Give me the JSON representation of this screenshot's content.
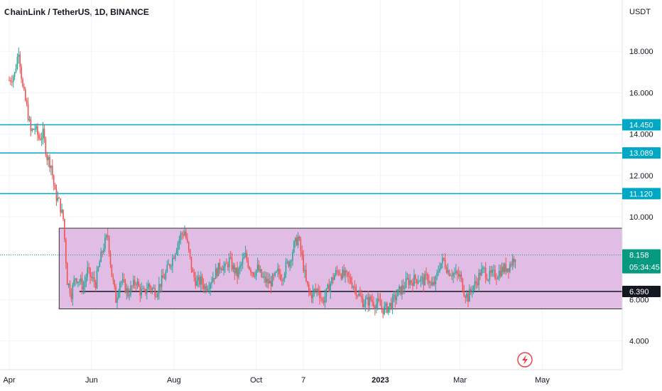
{
  "title": "ChainLink / TetherUS, 1D, BINANCE",
  "colors": {
    "up": "#26a69a",
    "down": "#ef5350",
    "level_line": "#00a8c6",
    "range_fill": "#e1bde6",
    "range_border": "#333333",
    "support": "#131722",
    "last_price": "#089981"
  },
  "icons": {
    "lightning": "lightning-icon"
  },
  "chart_data": {
    "type": "candlestick",
    "currency_label": "USDT",
    "y_ticks": [
      "18.000",
      "16.000",
      "14.000",
      "12.000",
      "10.000",
      "6.000",
      "4.000"
    ],
    "y_tick_values": [
      18,
      16,
      14,
      12,
      10,
      6,
      4
    ],
    "x_ticks": [
      "Apr",
      "Jun",
      "Aug",
      "Oct",
      "7",
      "2023",
      "Mar",
      "May"
    ],
    "x_tick_days": [
      0,
      61,
      122,
      183,
      218,
      275,
      334,
      395
    ],
    "horizontal_levels": [
      {
        "label": "14.450",
        "value": 14.45
      },
      {
        "label": "13.089",
        "value": 13.089
      },
      {
        "label": "11.120",
        "value": 11.12
      }
    ],
    "range_box": {
      "top": 9.45,
      "bottom": 5.55,
      "start_day": 37,
      "end_day": 460
    },
    "support_line": {
      "label": "6.390",
      "value": 6.39,
      "start_day": 52
    },
    "last_price": {
      "label": "8.158",
      "countdown": "05:34:45",
      "value": 8.158
    },
    "close_path": [
      [
        0,
        16.6
      ],
      [
        4,
        16.9
      ],
      [
        7,
        18.1
      ],
      [
        10,
        16.2
      ],
      [
        13,
        15.3
      ],
      [
        16,
        14.1
      ],
      [
        19,
        14.3
      ],
      [
        22,
        13.8
      ],
      [
        25,
        14.0
      ],
      [
        28,
        12.9
      ],
      [
        31,
        12.5
      ],
      [
        34,
        11.1
      ],
      [
        37,
        10.7
      ],
      [
        40,
        9.9
      ],
      [
        43,
        6.9
      ],
      [
        46,
        6.3
      ],
      [
        49,
        7.1
      ],
      [
        52,
        6.9
      ],
      [
        55,
        6.6
      ],
      [
        58,
        7.4
      ],
      [
        61,
        7.0
      ],
      [
        64,
        6.8
      ],
      [
        67,
        7.8
      ],
      [
        70,
        8.6
      ],
      [
        73,
        9.1
      ],
      [
        76,
        7.2
      ],
      [
        79,
        6.0
      ],
      [
        82,
        6.9
      ],
      [
        85,
        6.7
      ],
      [
        88,
        6.3
      ],
      [
        91,
        6.6
      ],
      [
        94,
        6.9
      ],
      [
        97,
        6.4
      ],
      [
        100,
        6.3
      ],
      [
        103,
        6.7
      ],
      [
        106,
        6.5
      ],
      [
        109,
        6.4
      ],
      [
        112,
        6.8
      ],
      [
        115,
        7.1
      ],
      [
        118,
        7.6
      ],
      [
        121,
        8.0
      ],
      [
        124,
        8.6
      ],
      [
        127,
        9.1
      ],
      [
        130,
        9.3
      ],
      [
        133,
        8.3
      ],
      [
        136,
        7.2
      ],
      [
        139,
        6.8
      ],
      [
        142,
        6.9
      ],
      [
        145,
        6.6
      ],
      [
        148,
        6.8
      ],
      [
        151,
        7.1
      ],
      [
        154,
        7.4
      ],
      [
        157,
        7.7
      ],
      [
        160,
        7.5
      ],
      [
        163,
        7.9
      ],
      [
        166,
        7.5
      ],
      [
        169,
        7.2
      ],
      [
        172,
        7.7
      ],
      [
        175,
        8.1
      ],
      [
        178,
        7.6
      ],
      [
        181,
        7.3
      ],
      [
        184,
        7.5
      ],
      [
        187,
        7.1
      ],
      [
        190,
        6.9
      ],
      [
        193,
        6.8
      ],
      [
        196,
        7.0
      ],
      [
        199,
        7.3
      ],
      [
        202,
        7.1
      ],
      [
        205,
        7.6
      ],
      [
        208,
        7.9
      ],
      [
        211,
        8.6
      ],
      [
        214,
        9.0
      ],
      [
        217,
        8.0
      ],
      [
        220,
        6.8
      ],
      [
        223,
        6.2
      ],
      [
        226,
        6.4
      ],
      [
        229,
        6.5
      ],
      [
        232,
        5.9
      ],
      [
        235,
        6.3
      ],
      [
        238,
        6.8
      ],
      [
        241,
        7.2
      ],
      [
        244,
        7.4
      ],
      [
        247,
        7.2
      ],
      [
        250,
        7.1
      ],
      [
        253,
        6.9
      ],
      [
        256,
        6.6
      ],
      [
        259,
        6.2
      ],
      [
        262,
        5.9
      ],
      [
        265,
        5.9
      ],
      [
        268,
        6.0
      ],
      [
        271,
        5.8
      ],
      [
        274,
        5.8
      ],
      [
        277,
        5.5
      ],
      [
        280,
        5.6
      ],
      [
        283,
        5.8
      ],
      [
        286,
        6.1
      ],
      [
        289,
        6.4
      ],
      [
        292,
        6.6
      ],
      [
        295,
        6.9
      ],
      [
        298,
        6.9
      ],
      [
        301,
        7.0
      ],
      [
        304,
        7.0
      ],
      [
        307,
        6.9
      ],
      [
        310,
        7.1
      ],
      [
        313,
        6.6
      ],
      [
        316,
        6.9
      ],
      [
        319,
        7.7
      ],
      [
        322,
        7.9
      ],
      [
        325,
        7.4
      ],
      [
        328,
        7.3
      ],
      [
        331,
        7.2
      ],
      [
        334,
        7.1
      ],
      [
        337,
        6.4
      ],
      [
        340,
        6.1
      ],
      [
        343,
        6.6
      ],
      [
        346,
        6.8
      ],
      [
        349,
        7.3
      ],
      [
        352,
        7.4
      ],
      [
        355,
        7.1
      ],
      [
        358,
        7.2
      ],
      [
        361,
        7.2
      ],
      [
        364,
        7.4
      ],
      [
        367,
        7.5
      ],
      [
        370,
        7.6
      ],
      [
        373,
        7.9
      ],
      [
        375,
        8.158
      ]
    ]
  }
}
